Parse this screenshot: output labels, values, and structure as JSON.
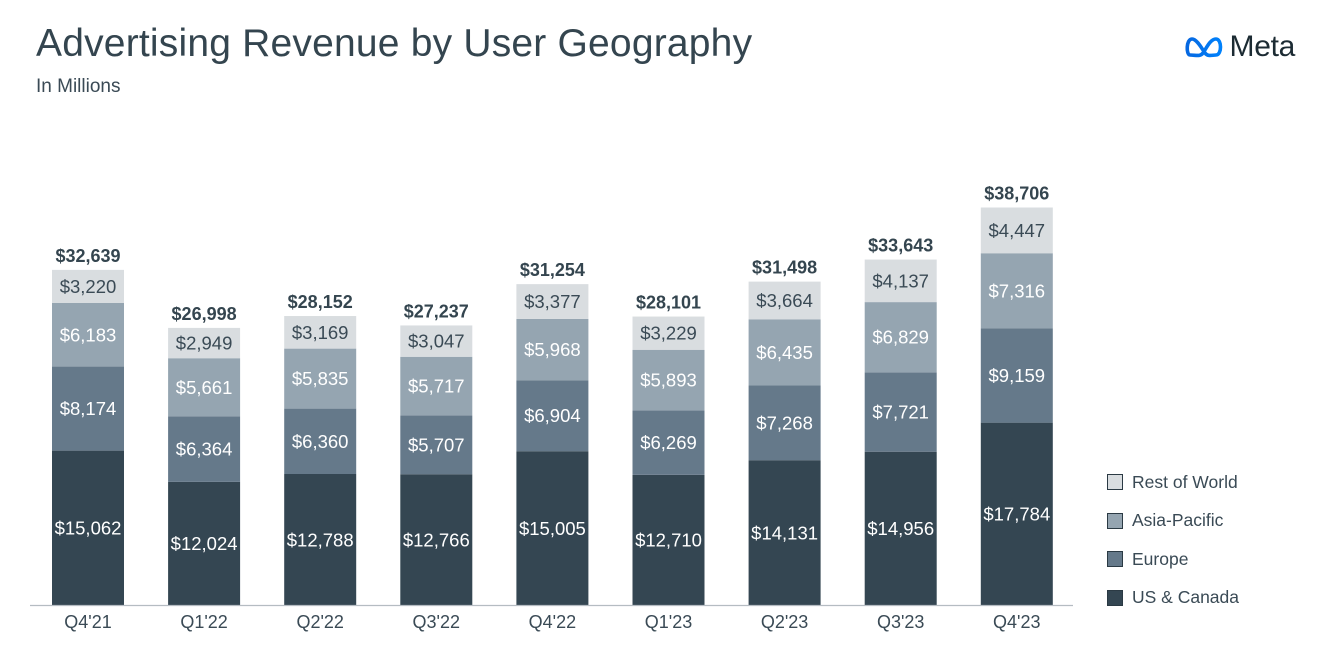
{
  "header": {
    "title": "Advertising Revenue by User Geography",
    "subtitle": "In Millions",
    "brand": "Meta",
    "logo_icon": "meta-infinity-icon"
  },
  "colors": {
    "Rest of World": "#d9dde0",
    "Asia-Pacific": "#95a5b1",
    "Europe": "#65798a",
    "US & Canada": "#344652",
    "logo_gradient_start": "#0668e1",
    "logo_gradient_end": "#0081fb"
  },
  "legend": {
    "placement": "right-bottom",
    "items": [
      "Rest of World",
      "Asia-Pacific",
      "Europe",
      "US & Canada"
    ]
  },
  "chart_data": {
    "type": "bar",
    "stacked": true,
    "title": "Advertising Revenue by User Geography",
    "subtitle": "In Millions",
    "xlabel": "",
    "ylabel": "",
    "ylim": [
      0,
      40000
    ],
    "grid": false,
    "categories": [
      "Q4'21",
      "Q1'22",
      "Q2'22",
      "Q3'22",
      "Q4'22",
      "Q1'23",
      "Q2'23",
      "Q3'23",
      "Q4'23"
    ],
    "series": [
      {
        "name": "US & Canada",
        "values": [
          15062,
          12024,
          12788,
          12766,
          15005,
          12710,
          14131,
          14956,
          17784
        ],
        "labels": [
          "$15,062",
          "$12,024",
          "$12,788",
          "$12,766",
          "$15,005",
          "$12,710",
          "$14,131",
          "$14,956",
          "$17,784"
        ]
      },
      {
        "name": "Europe",
        "values": [
          8174,
          6364,
          6360,
          5707,
          6904,
          6269,
          7268,
          7721,
          9159
        ],
        "labels": [
          "$8,174",
          "$6,364",
          "$6,360",
          "$5,707",
          "$6,904",
          "$6,269",
          "$7,268",
          "$7,721",
          "$9,159"
        ]
      },
      {
        "name": "Asia-Pacific",
        "values": [
          6183,
          5661,
          5835,
          5717,
          5968,
          5893,
          6435,
          6829,
          7316
        ],
        "labels": [
          "$6,183",
          "$5,661",
          "$5,835",
          "$5,717",
          "$5,968",
          "$5,893",
          "$6,435",
          "$6,829",
          "$7,316"
        ]
      },
      {
        "name": "Rest of World",
        "values": [
          3220,
          2949,
          3169,
          3047,
          3377,
          3229,
          3664,
          4137,
          4447
        ],
        "labels": [
          "$3,220",
          "$2,949",
          "$3,169",
          "$3,047",
          "$3,377",
          "$3,229",
          "$3,664",
          "$4,137",
          "$4,447"
        ]
      }
    ],
    "totals": [
      32639,
      26998,
      28152,
      27237,
      31254,
      28101,
      31498,
      33643,
      38706
    ],
    "total_labels": [
      "$32,639",
      "$26,998",
      "$28,152",
      "$27,237",
      "$31,254",
      "$28,101",
      "$31,498",
      "$33,643",
      "$38,706"
    ]
  }
}
